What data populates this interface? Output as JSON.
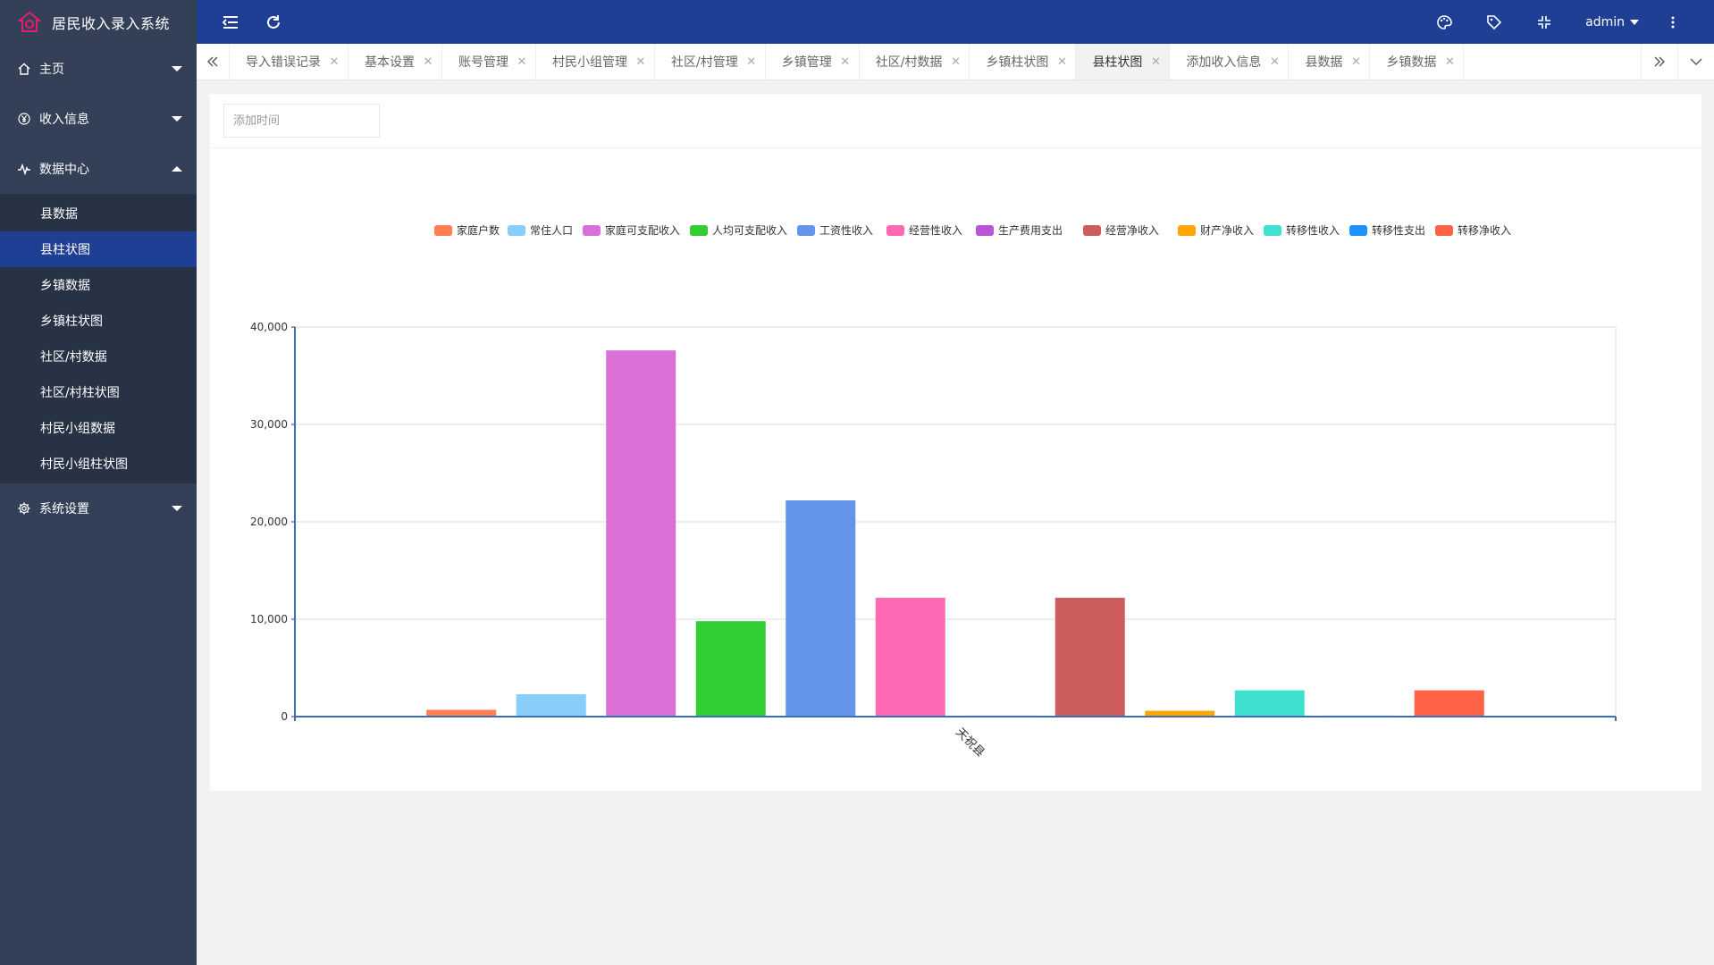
{
  "app": {
    "title": "居民收入录入系统"
  },
  "header": {
    "user": "admin"
  },
  "sidebar": {
    "menus": [
      {
        "label": "主页",
        "icon": "home-icon",
        "expanded": false
      },
      {
        "label": "收入信息",
        "icon": "yen-icon",
        "expanded": false
      },
      {
        "label": "数据中心",
        "icon": "pulse-icon",
        "expanded": true
      },
      {
        "label": "系统设置",
        "icon": "gear-icon",
        "expanded": false
      }
    ],
    "data_center_items": [
      {
        "label": "县数据",
        "active": false
      },
      {
        "label": "县柱状图",
        "active": true
      },
      {
        "label": "乡镇数据",
        "active": false
      },
      {
        "label": "乡镇柱状图",
        "active": false
      },
      {
        "label": "社区/村数据",
        "active": false
      },
      {
        "label": "社区/村柱状图",
        "active": false
      },
      {
        "label": "村民小组数据",
        "active": false
      },
      {
        "label": "村民小组柱状图",
        "active": false
      }
    ]
  },
  "tabs": [
    {
      "label": "导入错误记录",
      "active": false
    },
    {
      "label": "基本设置",
      "active": false
    },
    {
      "label": "账号管理",
      "active": false
    },
    {
      "label": "村民小组管理",
      "active": false
    },
    {
      "label": "社区/村管理",
      "active": false
    },
    {
      "label": "乡镇管理",
      "active": false
    },
    {
      "label": "社区/村数据",
      "active": false
    },
    {
      "label": "乡镇柱状图",
      "active": false
    },
    {
      "label": "县柱状图",
      "active": true
    },
    {
      "label": "添加收入信息",
      "active": false
    },
    {
      "label": "县数据",
      "active": false
    },
    {
      "label": "乡镇数据",
      "active": false
    }
  ],
  "filter": {
    "placeholder": "添加时间"
  },
  "chart_data": {
    "type": "bar",
    "categories": [
      "天祝县"
    ],
    "series": [
      {
        "name": "家庭户数",
        "values": [
          700
        ],
        "color": "#ff7f50"
      },
      {
        "name": "常住人口",
        "values": [
          2300
        ],
        "color": "#87cefa"
      },
      {
        "name": "家庭可支配收入",
        "values": [
          37600
        ],
        "color": "#da70d6"
      },
      {
        "name": "人均可支配收入",
        "values": [
          9800
        ],
        "color": "#32cd32"
      },
      {
        "name": "工资性收入",
        "values": [
          22200
        ],
        "color": "#6495ed"
      },
      {
        "name": "经营性收入",
        "values": [
          12200
        ],
        "color": "#ff69b4"
      },
      {
        "name": "生产费用支出",
        "values": [
          100
        ],
        "color": "#ba55d3"
      },
      {
        "name": "经营净收入",
        "values": [
          12200
        ],
        "color": "#cd5c5c"
      },
      {
        "name": "财产净收入",
        "values": [
          600
        ],
        "color": "#ffa500"
      },
      {
        "name": "转移性收入",
        "values": [
          2700
        ],
        "color": "#40e0d0"
      },
      {
        "name": "转移性支出",
        "values": [
          100
        ],
        "color": "#1e90ff"
      },
      {
        "name": "转移净收入",
        "values": [
          2700
        ],
        "color": "#ff6347"
      }
    ],
    "ylim": [
      0,
      40000
    ],
    "yticks": [
      "0",
      "10,000",
      "20,000",
      "30,000",
      "40,000"
    ],
    "grid": true,
    "legend": "top-center"
  }
}
